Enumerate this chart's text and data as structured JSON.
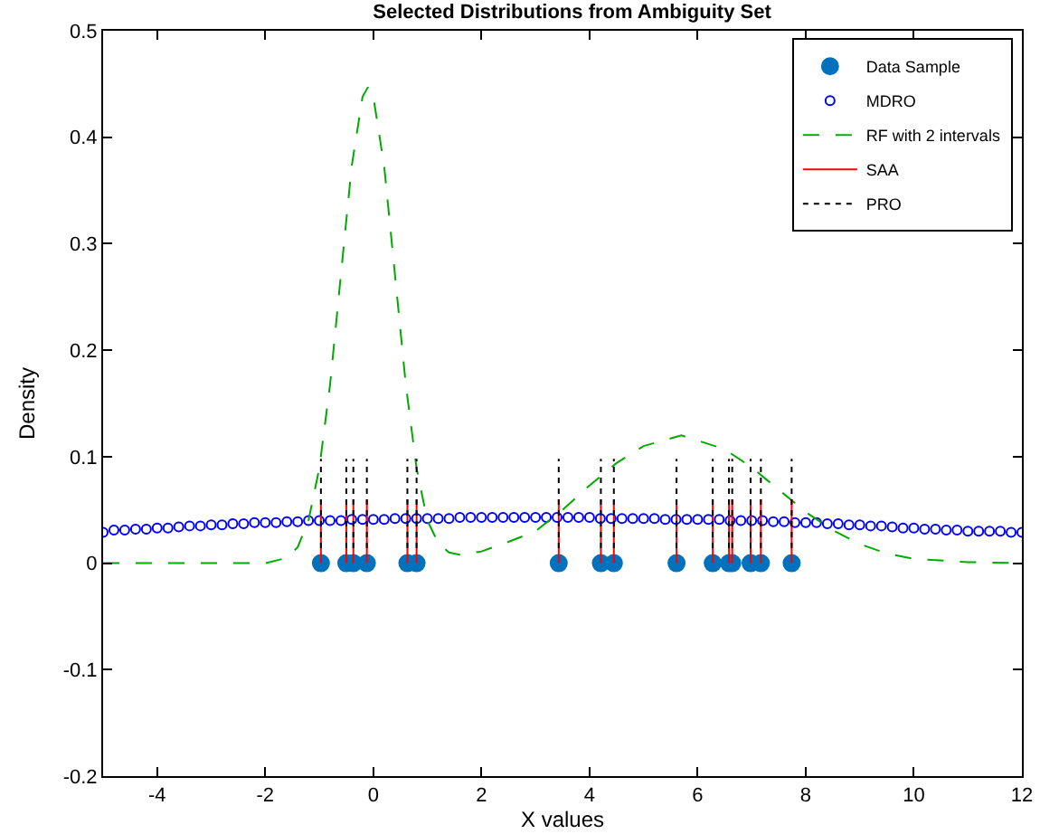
{
  "chart_data": {
    "type": "line",
    "title": "Selected Distributions from Ambiguity Set",
    "xlabel": "X values",
    "ylabel": "Density",
    "xlim": [
      -5,
      12
    ],
    "xticks": [
      -4,
      -2,
      0,
      2,
      4,
      6,
      8,
      10,
      12
    ],
    "ylim": [
      -0.2,
      0.5
    ],
    "yticks": [
      -0.2,
      -0.1,
      0,
      0.1,
      0.2,
      0.3,
      0.4,
      0.5
    ],
    "grid": false,
    "legend": "top right",
    "series": [
      {
        "name": "Data Sample",
        "type": "scatter",
        "marker": "circle",
        "color": "#0072bd",
        "x": [
          -0.97,
          -0.5,
          -0.37,
          -0.12,
          0.63,
          0.8,
          3.43,
          4.21,
          4.45,
          5.61,
          6.28,
          6.58,
          6.64,
          6.98,
          7.17,
          7.74
        ],
        "values": [
          0,
          0,
          0,
          0,
          0,
          0,
          0,
          0,
          0,
          0,
          0,
          0,
          0,
          0,
          0,
          0
        ]
      },
      {
        "name": "MDRO",
        "type": "scatter",
        "marker": "circle-open",
        "color": "#0000ff",
        "x": [
          -5,
          -4.8,
          -4.6,
          -4.4,
          -4.2,
          -4,
          -3.8,
          -3.6,
          -3.4,
          -3.2,
          -3,
          -2.8,
          -2.6,
          -2.4,
          -2.2,
          -2,
          -1.8,
          -1.6,
          -1.4,
          -1.2,
          -1,
          -0.8,
          -0.6,
          -0.4,
          -0.2,
          0,
          0.2,
          0.4,
          0.6,
          0.8,
          1,
          1.2,
          1.4,
          1.6,
          1.8,
          2,
          2.2,
          2.4,
          2.6,
          2.8,
          3,
          3.2,
          3.4,
          3.6,
          3.8,
          4,
          4.2,
          4.4,
          4.6,
          4.8,
          5,
          5.2,
          5.4,
          5.6,
          5.8,
          6,
          6.2,
          6.4,
          6.6,
          6.8,
          7,
          7.2,
          7.4,
          7.6,
          7.8,
          8,
          8.2,
          8.4,
          8.6,
          8.8,
          9,
          9.2,
          9.4,
          9.6,
          9.8,
          10,
          10.2,
          10.4,
          10.6,
          10.8,
          11,
          11.2,
          11.4,
          11.6,
          11.8,
          12
        ],
        "values": [
          0.029,
          0.031,
          0.031,
          0.032,
          0.032,
          0.033,
          0.033,
          0.034,
          0.035,
          0.035,
          0.036,
          0.036,
          0.037,
          0.037,
          0.038,
          0.038,
          0.038,
          0.039,
          0.039,
          0.04,
          0.04,
          0.04,
          0.04,
          0.041,
          0.041,
          0.041,
          0.041,
          0.042,
          0.042,
          0.042,
          0.042,
          0.042,
          0.042,
          0.043,
          0.043,
          0.043,
          0.043,
          0.043,
          0.043,
          0.043,
          0.043,
          0.043,
          0.043,
          0.043,
          0.043,
          0.043,
          0.042,
          0.042,
          0.042,
          0.042,
          0.042,
          0.042,
          0.041,
          0.041,
          0.041,
          0.041,
          0.041,
          0.041,
          0.04,
          0.04,
          0.04,
          0.04,
          0.039,
          0.039,
          0.038,
          0.038,
          0.038,
          0.037,
          0.037,
          0.036,
          0.036,
          0.035,
          0.035,
          0.034,
          0.033,
          0.033,
          0.032,
          0.032,
          0.031,
          0.031,
          0.03,
          0.03,
          0.03,
          0.03,
          0.029,
          0.029
        ]
      },
      {
        "name": "RF with 2 intervals",
        "line_style": "dashed",
        "color": "#00aa00",
        "x": [
          -5,
          -3,
          -2,
          -1.6,
          -1.4,
          -1.2,
          -1,
          -0.8,
          -0.6,
          -0.4,
          -0.2,
          -0.1,
          0,
          0.2,
          0.4,
          0.6,
          0.8,
          1,
          1.2,
          1.4,
          1.6,
          2,
          2.5,
          3,
          3.5,
          4,
          4.5,
          5,
          5.7,
          6.5,
          7,
          7.5,
          8,
          8.5,
          9,
          9.5,
          10,
          11,
          12
        ],
        "values": [
          0,
          0,
          0,
          0.005,
          0.015,
          0.04,
          0.089,
          0.168,
          0.271,
          0.373,
          0.438,
          0.447,
          0.438,
          0.373,
          0.271,
          0.168,
          0.089,
          0.04,
          0.019,
          0.01,
          0.008,
          0.011,
          0.02,
          0.03,
          0.05,
          0.073,
          0.094,
          0.11,
          0.12,
          0.107,
          0.09,
          0.069,
          0.048,
          0.031,
          0.018,
          0.009,
          0.004,
          0.001,
          0
        ]
      },
      {
        "name": "SAA",
        "line_style": "solid",
        "color": "#ff0000",
        "x": [
          -0.97,
          -0.97,
          null,
          -0.5,
          -0.5,
          null,
          -0.37,
          -0.37,
          null,
          -0.12,
          -0.12,
          null,
          0.63,
          0.63,
          null,
          0.8,
          0.8,
          null,
          3.43,
          3.43,
          null,
          4.21,
          4.21,
          null,
          4.45,
          4.45,
          null,
          5.61,
          5.61,
          null,
          6.28,
          6.28,
          null,
          6.58,
          6.58,
          null,
          6.64,
          6.64,
          null,
          6.98,
          6.98,
          null,
          7.17,
          7.17,
          null,
          7.74,
          7.74,
          null
        ],
        "values": [
          0,
          0.06,
          null,
          0,
          0.06,
          null,
          0,
          0.06,
          null,
          0,
          0.06,
          null,
          0,
          0.06,
          null,
          0,
          0.06,
          null,
          0,
          0.06,
          null,
          0,
          0.06,
          null,
          0,
          0.06,
          null,
          0,
          0.06,
          null,
          0,
          0.06,
          null,
          0,
          0.06,
          null,
          0,
          0.06,
          null,
          0,
          0.06,
          null,
          0,
          0.06,
          null,
          0,
          0.06,
          null
        ]
      },
      {
        "name": "PRO",
        "line_style": "dotted",
        "color": "#000000",
        "x": [
          -0.97,
          -0.97,
          null,
          -0.5,
          -0.5,
          null,
          -0.37,
          -0.37,
          null,
          -0.12,
          -0.12,
          null,
          0.63,
          0.63,
          null,
          0.8,
          0.8,
          null,
          3.43,
          3.43,
          null,
          4.21,
          4.21,
          null,
          4.45,
          4.45,
          null,
          5.61,
          5.61,
          null,
          6.28,
          6.28,
          null,
          6.58,
          6.58,
          null,
          6.64,
          6.64,
          null,
          6.98,
          6.98,
          null,
          7.17,
          7.17,
          null,
          7.74,
          7.74,
          null
        ],
        "values": [
          0.014,
          0.098,
          null,
          0.014,
          0.098,
          null,
          0.014,
          0.098,
          null,
          0.014,
          0.098,
          null,
          0.014,
          0.098,
          null,
          0.014,
          0.098,
          null,
          0.014,
          0.098,
          null,
          0.014,
          0.098,
          null,
          0.014,
          0.098,
          null,
          0.014,
          0.098,
          null,
          0.014,
          0.098,
          null,
          0.014,
          0.098,
          null,
          0.014,
          0.098,
          null,
          0.014,
          0.098,
          null,
          0.014,
          0.098,
          null,
          0.014,
          0.098,
          null
        ]
      }
    ]
  }
}
